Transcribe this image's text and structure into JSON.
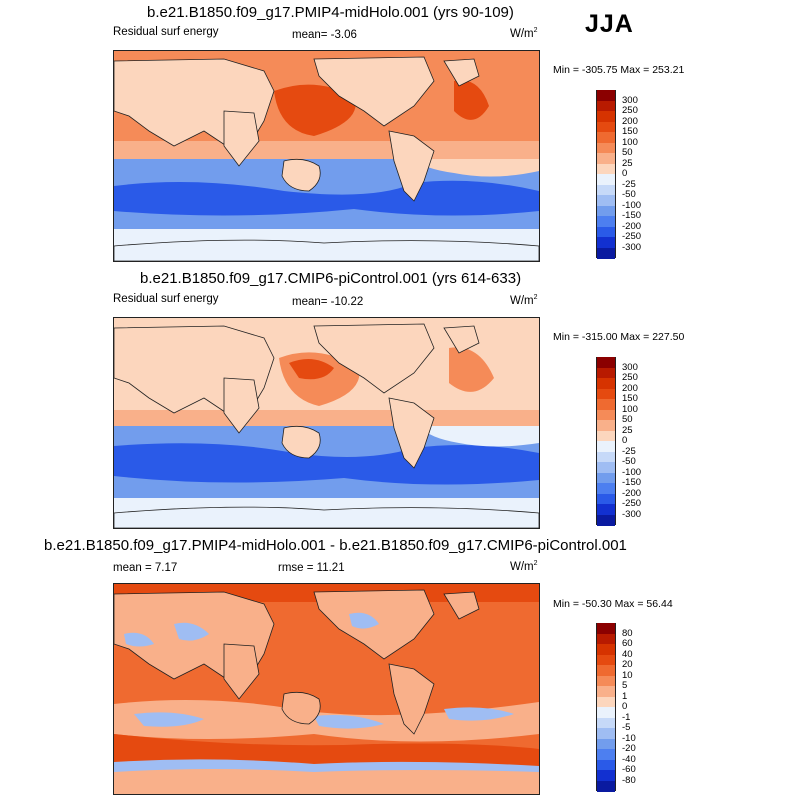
{
  "season": "JJA",
  "panels": [
    {
      "title": "b.e21.B1850.f09_g17.PMIP4-midHolo.001 (yrs 90-109)",
      "left_label": "Residual surf energy",
      "mean_label": "mean=  -3.06",
      "units": "W/m",
      "units_sup": "2",
      "minmax": "Min = -305.75 Max = 253.21",
      "colorbar": {
        "labels": [
          "300",
          "250",
          "200",
          "150",
          "100",
          "50",
          "25",
          "0",
          "-25",
          "-50",
          "-100",
          "-150",
          "-200",
          "-250",
          "-300"
        ],
        "colors": [
          "#8b0000",
          "#b81a00",
          "#d63300",
          "#e54a10",
          "#ef6a30",
          "#f58b58",
          "#f9b08a",
          "#fcd6bd",
          "#eaf2fc",
          "#c6d9f8",
          "#9fbdf3",
          "#729ded",
          "#4d7ff0",
          "#2a5ae8",
          "#1230d0",
          "#0a1aa0"
        ]
      }
    },
    {
      "title": "b.e21.B1850.f09_g17.CMIP6-piControl.001 (yrs 614-633)",
      "left_label": "Residual surf energy",
      "mean_label": "mean= -10.22",
      "units": "W/m",
      "units_sup": "2",
      "minmax": "Min = -315.00 Max = 227.50",
      "colorbar": {
        "labels": [
          "300",
          "250",
          "200",
          "150",
          "100",
          "50",
          "25",
          "0",
          "-25",
          "-50",
          "-100",
          "-150",
          "-200",
          "-250",
          "-300"
        ],
        "colors": [
          "#8b0000",
          "#b81a00",
          "#d63300",
          "#e54a10",
          "#ef6a30",
          "#f58b58",
          "#f9b08a",
          "#fcd6bd",
          "#eaf2fc",
          "#c6d9f8",
          "#9fbdf3",
          "#729ded",
          "#4d7ff0",
          "#2a5ae8",
          "#1230d0",
          "#0a1aa0"
        ]
      }
    },
    {
      "title": "b.e21.B1850.f09_g17.PMIP4-midHolo.001 - b.e21.B1850.f09_g17.CMIP6-piControl.001",
      "left_label": "mean =   7.17",
      "mean_label": "rmse =  11.21",
      "units": "W/m",
      "units_sup": "2",
      "minmax": "Min = -50.30 Max =  56.44",
      "colorbar": {
        "labels": [
          "80",
          "60",
          "40",
          "20",
          "10",
          "5",
          "1",
          "0",
          "-1",
          "-5",
          "-10",
          "-20",
          "-40",
          "-60",
          "-80"
        ],
        "colors": [
          "#8b0000",
          "#b81a00",
          "#d63300",
          "#e54a10",
          "#ef6a30",
          "#f58b58",
          "#f9b08a",
          "#fcd6bd",
          "#eaf2fc",
          "#c6d9f8",
          "#9fbdf3",
          "#729ded",
          "#4d7ff0",
          "#2a5ae8",
          "#1230d0",
          "#0a1aa0"
        ]
      }
    }
  ],
  "map_colors": {
    "ocean_north": "#f58b58",
    "ocean_north_strong": "#e54a10",
    "ocean_tropics": "#f9b08a",
    "ocean_south": "#729ded",
    "ocean_south_strong": "#2a5ae8",
    "ocean_pale": "#fcd6bd",
    "antarctic": "#eaf2fc",
    "land_warm": "#fcd6bd",
    "diff_base": "#ef6a30",
    "diff_pale": "#f9b08a",
    "diff_blue": "#9fbdf3"
  }
}
